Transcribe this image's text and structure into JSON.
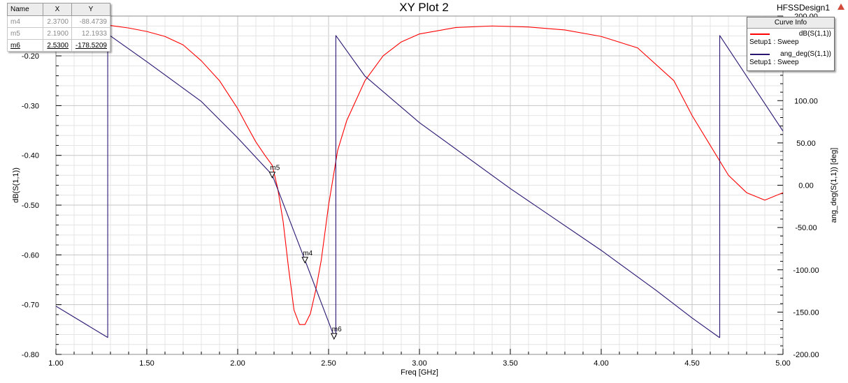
{
  "window": {
    "design_name": "HFSSDesign1",
    "warning_icon": "warning-triangle-icon"
  },
  "chart_data": {
    "type": "line",
    "title": "XY Plot 2",
    "xlabel": "Freq [GHz]",
    "ylabel_left": "dB(S(1,1))",
    "ylabel_right": "ang_deg(S(1,1)) [deg]",
    "xlim": [
      1.0,
      5.0
    ],
    "ylim_left": [
      -0.8,
      -0.12
    ],
    "ylim_right": [
      -200,
      200
    ],
    "x_ticks": [
      "1.00",
      "1.50",
      "2.00",
      "2.50",
      "3.00",
      "3.50",
      "4.00",
      "4.50",
      "5.00"
    ],
    "y_left_ticks": [
      "-0.20",
      "-0.30",
      "-0.40",
      "-0.50",
      "-0.60",
      "-0.70",
      "-0.80"
    ],
    "y_right_ticks": [
      "200.00",
      "150.00",
      "100.00",
      "50.00",
      "0.00",
      "-50.00",
      "-100.00",
      "-150.00",
      "-200.00"
    ],
    "grid": true,
    "series": [
      {
        "name": "dB(S(1,1))",
        "setup": "Setup1 : Sweep",
        "axis": "left",
        "color": "#ff0000",
        "x": [
          1.0,
          1.1,
          1.2,
          1.3,
          1.4,
          1.5,
          1.6,
          1.7,
          1.8,
          1.9,
          2.0,
          2.05,
          2.1,
          2.15,
          2.19,
          2.22,
          2.25,
          2.28,
          2.31,
          2.34,
          2.37,
          2.4,
          2.43,
          2.46,
          2.5,
          2.55,
          2.6,
          2.7,
          2.8,
          2.9,
          3.0,
          3.2,
          3.4,
          3.6,
          3.8,
          4.0,
          4.2,
          4.4,
          4.5,
          4.6,
          4.7,
          4.8,
          4.9,
          5.0
        ],
        "values": [
          -0.128,
          -0.131,
          -0.135,
          -0.139,
          -0.144,
          -0.151,
          -0.161,
          -0.178,
          -0.21,
          -0.25,
          -0.306,
          -0.34,
          -0.373,
          -0.4,
          -0.42,
          -0.466,
          -0.533,
          -0.627,
          -0.711,
          -0.74,
          -0.74,
          -0.718,
          -0.67,
          -0.61,
          -0.5,
          -0.39,
          -0.33,
          -0.25,
          -0.2,
          -0.172,
          -0.156,
          -0.143,
          -0.14,
          -0.142,
          -0.148,
          -0.161,
          -0.184,
          -0.25,
          -0.32,
          -0.38,
          -0.44,
          -0.475,
          -0.49,
          -0.475
        ]
      },
      {
        "name": "ang_deg(S(1,1))",
        "setup": "Setup1 : Sweep",
        "axis": "right",
        "color": "#2a1570",
        "x": [
          1.0,
          1.285,
          1.285,
          1.285,
          1.29,
          1.5,
          1.8,
          2.0,
          2.19,
          2.37,
          2.53,
          2.54,
          2.54,
          2.54,
          2.7,
          3.0,
          3.5,
          4.0,
          4.3,
          4.5,
          4.65,
          4.652,
          4.652,
          4.652,
          5.0
        ],
        "values": [
          -143,
          -180,
          -120,
          178,
          178,
          146,
          99,
          56,
          12.19,
          -88.47,
          -178.52,
          -178.52,
          -60,
          177,
          129,
          74,
          -4,
          -77,
          -124,
          -157,
          -180,
          -180,
          -60,
          177,
          64
        ]
      }
    ]
  },
  "markers": {
    "headers": [
      "Name",
      "X",
      "Y"
    ],
    "rows": [
      {
        "name": "m4",
        "x": "2.3700",
        "y": "-88.4739"
      },
      {
        "name": "m5",
        "x": "2.1900",
        "y": "12.1933"
      },
      {
        "name": "m6",
        "x": "2.5300",
        "y": "-178.5209"
      }
    ],
    "active": "m6",
    "points": [
      {
        "name": "m4",
        "x": 2.37,
        "y": -88.4739
      },
      {
        "name": "m5",
        "x": 2.19,
        "y": 12.1933
      },
      {
        "name": "m6",
        "x": 2.53,
        "y": -178.5209
      }
    ]
  },
  "legend": {
    "header": "Curve Info"
  }
}
